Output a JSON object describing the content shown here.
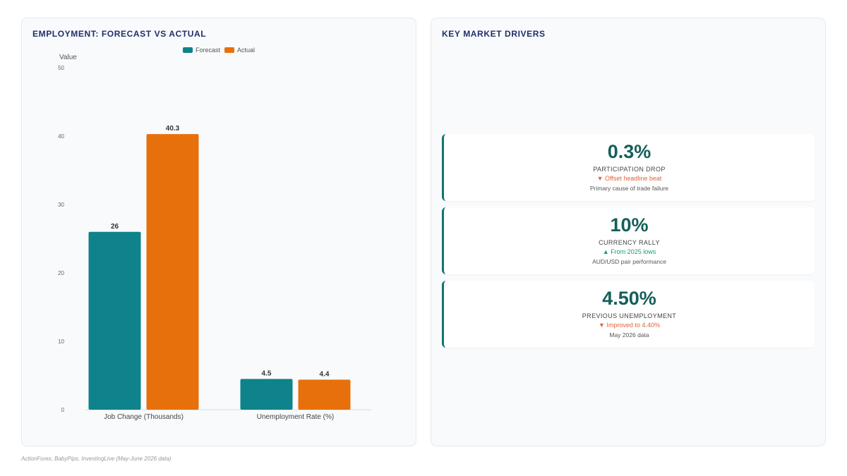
{
  "left_panel": {
    "title": "EMPLOYMENT: FORECAST VS ACTUAL"
  },
  "chart_data": {
    "type": "bar",
    "title": "EMPLOYMENT: FORECAST VS ACTUAL",
    "ylabel": "Value",
    "xlabel": "",
    "ylim": [
      0,
      50
    ],
    "yticks": [
      "0",
      "10",
      "20",
      "30",
      "40",
      "50"
    ],
    "categories": [
      "Job Change (Thousands)",
      "Unemployment Rate (%)"
    ],
    "series": [
      {
        "name": "Forecast",
        "values": [
          26,
          4.5
        ],
        "labels": [
          "26",
          "4.5"
        ],
        "color": "#0e838b"
      },
      {
        "name": "Actual",
        "values": [
          40.3,
          4.4
        ],
        "labels": [
          "40.3",
          "4.4"
        ],
        "color": "#e8700c"
      }
    ],
    "legend": "top",
    "grid": false
  },
  "right_panel": {
    "title": "KEY MARKET DRIVERS",
    "cards": [
      {
        "value": "0.3%",
        "label": "PARTICIPATION DROP",
        "change": "▼ Offset headline beat",
        "direction": "down",
        "note": "Primary cause of trade failure"
      },
      {
        "value": "10%",
        "label": "CURRENCY RALLY",
        "change": "▲ From 2025 lows",
        "direction": "up",
        "note": "AUD/USD pair performance"
      },
      {
        "value": "4.50%",
        "label": "PREVIOUS UNEMPLOYMENT",
        "change": "▼ Improved to 4.40%",
        "direction": "down",
        "note": "May 2026 data"
      }
    ]
  },
  "source": "ActionForex, BabyPips, InvestingLive (May-June 2026 data)",
  "colors": {
    "accent": "#1f2f6b",
    "forecast": "#0e838b",
    "actual": "#e8700c",
    "value_text": "#145f5a",
    "card_border": "#0f766e"
  }
}
